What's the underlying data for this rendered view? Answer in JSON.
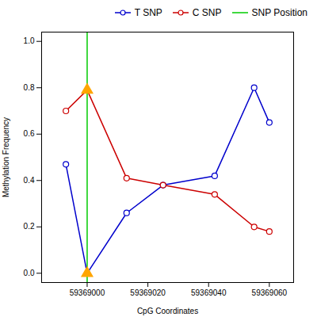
{
  "chart_data": {
    "type": "line",
    "xlabel": "CpG Coordinates",
    "ylabel": "Methylation Frequency",
    "x": [
      59368993,
      59369000,
      59369013,
      59369025,
      59369042,
      59369055,
      59369060
    ],
    "series": [
      {
        "name": "T SNP",
        "color": "#0000CC",
        "marker": "circle",
        "values": [
          0.47,
          0.0,
          0.26,
          0.38,
          0.42,
          0.8,
          0.65
        ]
      },
      {
        "name": "C SNP",
        "color": "#CC0000",
        "marker": "circle",
        "values": [
          0.7,
          0.79,
          0.41,
          0.38,
          0.34,
          0.2,
          0.18
        ]
      }
    ],
    "snp_line": {
      "x": 59369000,
      "name": "SNP Position",
      "color": "#00CC00"
    },
    "snp_markers": {
      "x": 59369000,
      "color": "#FFA500",
      "marker": "triangle"
    },
    "xlim": [
      59368985,
      59369068
    ],
    "ylim": [
      -0.04,
      1.04
    ],
    "xticks": [
      59369000,
      59369020,
      59369040,
      59369060
    ],
    "yticks": [
      {
        "value": 0.0,
        "label": "0.0"
      },
      0.2,
      0.4,
      0.6,
      0.8,
      {
        "value": 1.0,
        "label": "1.0"
      }
    ],
    "legend": "right",
    "grid": false
  }
}
